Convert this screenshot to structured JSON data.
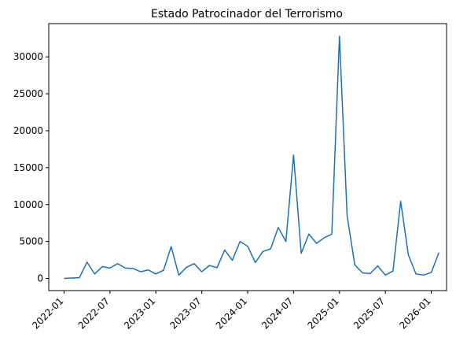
{
  "chart_data": {
    "type": "line",
    "title": "Estado Patrocinador del Terrorismo",
    "xlabel": "",
    "ylabel": "",
    "x_ticks": [
      "2022-01",
      "2022-07",
      "2023-01",
      "2023-07",
      "2024-01",
      "2024-07",
      "2025-01",
      "2025-07",
      "2026-01"
    ],
    "y_ticks": [
      0,
      5000,
      10000,
      15000,
      20000,
      25000,
      30000
    ],
    "y_tick_labels": [
      "0",
      "5000",
      "10000",
      "15000",
      "20000",
      "25000",
      "30000"
    ],
    "xlim": [
      "2021-11",
      "2026-03"
    ],
    "ylim": [
      -1650,
      34500
    ],
    "grid": false,
    "line_color": "#1f6fb4",
    "series": [
      {
        "points": [
          [
            "2022-01",
            0
          ],
          [
            "2022-02",
            50
          ],
          [
            "2022-03",
            100
          ],
          [
            "2022-04",
            2200
          ],
          [
            "2022-05",
            600
          ],
          [
            "2022-06",
            1600
          ],
          [
            "2022-07",
            1400
          ],
          [
            "2022-08",
            2000
          ],
          [
            "2022-09",
            1400
          ],
          [
            "2022-10",
            1350
          ],
          [
            "2022-11",
            900
          ],
          [
            "2022-12",
            1150
          ],
          [
            "2023-01",
            600
          ],
          [
            "2023-02",
            1100
          ],
          [
            "2023-03",
            4300
          ],
          [
            "2023-04",
            450
          ],
          [
            "2023-05",
            1500
          ],
          [
            "2023-06",
            2000
          ],
          [
            "2023-07",
            900
          ],
          [
            "2023-08",
            1750
          ],
          [
            "2023-09",
            1450
          ],
          [
            "2023-10",
            3850
          ],
          [
            "2023-11",
            2450
          ],
          [
            "2023-12",
            5000
          ],
          [
            "2024-01",
            4350
          ],
          [
            "2024-02",
            2150
          ],
          [
            "2024-03",
            3650
          ],
          [
            "2024-04",
            4000
          ],
          [
            "2024-05",
            6900
          ],
          [
            "2024-06",
            5000
          ],
          [
            "2024-07",
            16700
          ],
          [
            "2024-08",
            3400
          ],
          [
            "2024-09",
            6000
          ],
          [
            "2024-10",
            4750
          ],
          [
            "2024-11",
            5500
          ],
          [
            "2024-12",
            6000
          ],
          [
            "2025-01",
            32800
          ],
          [
            "2025-02",
            8500
          ],
          [
            "2025-03",
            1850
          ],
          [
            "2025-04",
            750
          ],
          [
            "2025-05",
            650
          ],
          [
            "2025-06",
            1700
          ],
          [
            "2025-07",
            450
          ],
          [
            "2025-08",
            1000
          ],
          [
            "2025-09",
            10450
          ],
          [
            "2025-10",
            3200
          ],
          [
            "2025-11",
            600
          ],
          [
            "2025-12",
            450
          ],
          [
            "2026-01",
            800
          ],
          [
            "2026-02",
            3500
          ]
        ]
      }
    ]
  }
}
